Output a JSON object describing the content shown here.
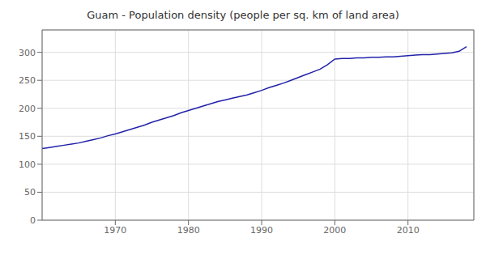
{
  "chart_data": {
    "type": "line",
    "title": "Guam - Population density (people per sq. km of land area)",
    "x": [
      1960,
      1961,
      1962,
      1963,
      1964,
      1965,
      1966,
      1967,
      1968,
      1969,
      1970,
      1971,
      1972,
      1973,
      1974,
      1975,
      1976,
      1977,
      1978,
      1979,
      1980,
      1981,
      1982,
      1983,
      1984,
      1985,
      1986,
      1987,
      1988,
      1989,
      1990,
      1991,
      1992,
      1993,
      1994,
      1995,
      1996,
      1997,
      1998,
      1999,
      2000,
      2001,
      2002,
      2003,
      2004,
      2005,
      2006,
      2007,
      2008,
      2009,
      2010,
      2011,
      2012,
      2013,
      2014,
      2015,
      2016,
      2017,
      2018
    ],
    "values": [
      128,
      130,
      132,
      134,
      136,
      138,
      141,
      144,
      147,
      151,
      154,
      158,
      162,
      166,
      170,
      175,
      179,
      183,
      187,
      192,
      196,
      200,
      204,
      208,
      212,
      215,
      218,
      221,
      224,
      228,
      232,
      237,
      241,
      245,
      250,
      255,
      260,
      265,
      270,
      278,
      288,
      289,
      289,
      290,
      290,
      291,
      291,
      292,
      292,
      293,
      294,
      295,
      296,
      296,
      297,
      298,
      299,
      302,
      310
    ],
    "color": "#2222aa",
    "xlim": [
      1960,
      2019
    ],
    "ylim": [
      0,
      340
    ],
    "xticks": [
      1970,
      1980,
      1990,
      2000,
      2010
    ],
    "yticks": [
      0,
      50,
      100,
      150,
      200,
      250,
      300
    ],
    "grid": true
  }
}
